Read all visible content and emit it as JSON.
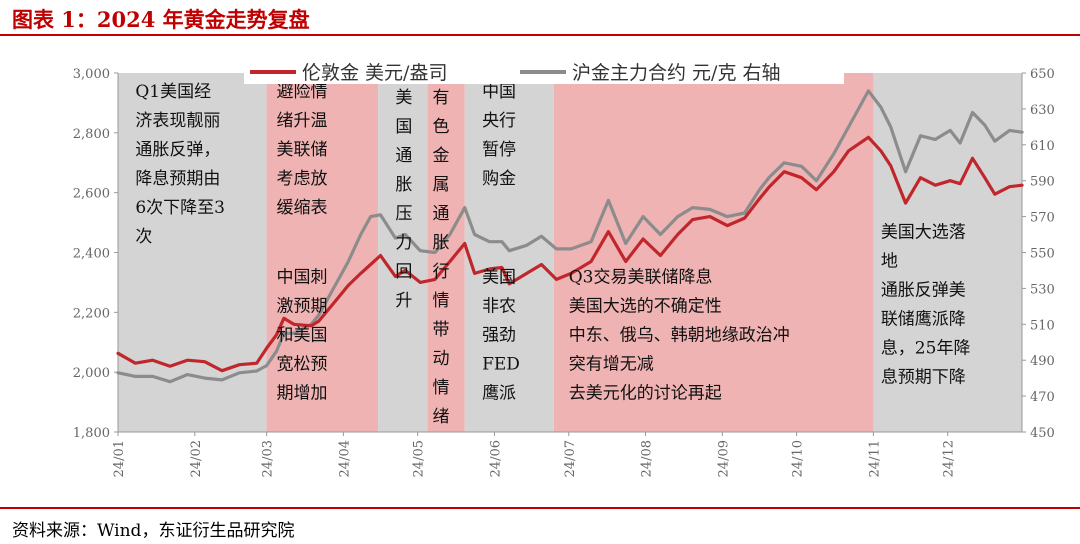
{
  "title": "图表 1：2024 年黄金走势复盘",
  "source": "资料来源：Wind，东证衍生品研究院",
  "chart_data": {
    "type": "line",
    "x_ticks": [
      "24/01",
      "24/02",
      "24/03",
      "24/04",
      "24/05",
      "24/06",
      "24/07",
      "24/08",
      "24/09",
      "24/10",
      "24/11",
      "24/12"
    ],
    "xlim": [
      "2024-01-01",
      "2024-12-31"
    ],
    "y_left": {
      "min": 1800,
      "max": 3000,
      "step": 200,
      "ticks": [
        "1,800",
        "2,000",
        "2,200",
        "2,400",
        "2,600",
        "2,800",
        "3,000"
      ]
    },
    "y_right": {
      "min": 450,
      "max": 650,
      "step": 20,
      "ticks": [
        "450",
        "470",
        "490",
        "510",
        "530",
        "550",
        "570",
        "590",
        "610",
        "630",
        "650"
      ]
    },
    "series": [
      {
        "name": "伦敦金 美元/盎司",
        "axis": "left",
        "color": "#c0272d",
        "points": [
          [
            "2024-01-01",
            2063
          ],
          [
            "2024-01-08",
            2030
          ],
          [
            "2024-01-15",
            2040
          ],
          [
            "2024-01-22",
            2020
          ],
          [
            "2024-01-29",
            2040
          ],
          [
            "2024-02-05",
            2035
          ],
          [
            "2024-02-12",
            2005
          ],
          [
            "2024-02-19",
            2025
          ],
          [
            "2024-02-26",
            2030
          ],
          [
            "2024-03-01",
            2080
          ],
          [
            "2024-03-05",
            2125
          ],
          [
            "2024-03-08",
            2180
          ],
          [
            "2024-03-12",
            2160
          ],
          [
            "2024-03-19",
            2155
          ],
          [
            "2024-03-22",
            2170
          ],
          [
            "2024-03-28",
            2230
          ],
          [
            "2024-04-03",
            2290
          ],
          [
            "2024-04-08",
            2330
          ],
          [
            "2024-04-12",
            2360
          ],
          [
            "2024-04-16",
            2390
          ],
          [
            "2024-04-22",
            2320
          ],
          [
            "2024-04-26",
            2340
          ],
          [
            "2024-05-02",
            2300
          ],
          [
            "2024-05-08",
            2310
          ],
          [
            "2024-05-14",
            2370
          ],
          [
            "2024-05-20",
            2430
          ],
          [
            "2024-05-24",
            2330
          ],
          [
            "2024-05-30",
            2345
          ],
          [
            "2024-06-04",
            2350
          ],
          [
            "2024-06-07",
            2295
          ],
          [
            "2024-06-14",
            2330
          ],
          [
            "2024-06-20",
            2360
          ],
          [
            "2024-06-26",
            2310
          ],
          [
            "2024-07-02",
            2330
          ],
          [
            "2024-07-10",
            2370
          ],
          [
            "2024-07-17",
            2470
          ],
          [
            "2024-07-24",
            2370
          ],
          [
            "2024-07-31",
            2445
          ],
          [
            "2024-08-07",
            2390
          ],
          [
            "2024-08-14",
            2460
          ],
          [
            "2024-08-20",
            2510
          ],
          [
            "2024-08-27",
            2520
          ],
          [
            "2024-09-03",
            2490
          ],
          [
            "2024-09-10",
            2515
          ],
          [
            "2024-09-16",
            2580
          ],
          [
            "2024-09-20",
            2620
          ],
          [
            "2024-09-26",
            2670
          ],
          [
            "2024-10-03",
            2650
          ],
          [
            "2024-10-09",
            2610
          ],
          [
            "2024-10-16",
            2670
          ],
          [
            "2024-10-22",
            2740
          ],
          [
            "2024-10-30",
            2785
          ],
          [
            "2024-11-04",
            2740
          ],
          [
            "2024-11-08",
            2690
          ],
          [
            "2024-11-14",
            2565
          ],
          [
            "2024-11-20",
            2650
          ],
          [
            "2024-11-26",
            2625
          ],
          [
            "2024-12-02",
            2640
          ],
          [
            "2024-12-06",
            2630
          ],
          [
            "2024-12-11",
            2715
          ],
          [
            "2024-12-16",
            2650
          ],
          [
            "2024-12-20",
            2595
          ],
          [
            "2024-12-26",
            2620
          ],
          [
            "2024-12-31",
            2625
          ]
        ]
      },
      {
        "name": "沪金主力合约 元/克 右轴",
        "axis": "right",
        "color": "#8c8c8c",
        "points": [
          [
            "2024-01-01",
            483
          ],
          [
            "2024-01-08",
            481
          ],
          [
            "2024-01-15",
            481
          ],
          [
            "2024-01-22",
            478
          ],
          [
            "2024-01-29",
            482
          ],
          [
            "2024-02-05",
            480
          ],
          [
            "2024-02-12",
            479
          ],
          [
            "2024-02-19",
            483
          ],
          [
            "2024-02-26",
            484
          ],
          [
            "2024-03-01",
            487
          ],
          [
            "2024-03-05",
            495
          ],
          [
            "2024-03-08",
            505
          ],
          [
            "2024-03-12",
            505
          ],
          [
            "2024-03-19",
            510
          ],
          [
            "2024-03-22",
            515
          ],
          [
            "2024-03-28",
            530
          ],
          [
            "2024-04-03",
            545
          ],
          [
            "2024-04-08",
            560
          ],
          [
            "2024-04-12",
            570
          ],
          [
            "2024-04-16",
            571
          ],
          [
            "2024-04-22",
            558
          ],
          [
            "2024-04-26",
            560
          ],
          [
            "2024-05-02",
            551
          ],
          [
            "2024-05-08",
            550
          ],
          [
            "2024-05-14",
            560
          ],
          [
            "2024-05-20",
            575
          ],
          [
            "2024-05-24",
            560
          ],
          [
            "2024-05-30",
            556
          ],
          [
            "2024-06-04",
            556
          ],
          [
            "2024-06-07",
            551
          ],
          [
            "2024-06-14",
            554
          ],
          [
            "2024-06-20",
            559
          ],
          [
            "2024-06-26",
            552
          ],
          [
            "2024-07-02",
            552
          ],
          [
            "2024-07-10",
            556
          ],
          [
            "2024-07-17",
            579
          ],
          [
            "2024-07-24",
            555
          ],
          [
            "2024-07-31",
            570
          ],
          [
            "2024-08-07",
            560
          ],
          [
            "2024-08-14",
            570
          ],
          [
            "2024-08-20",
            575
          ],
          [
            "2024-08-27",
            574
          ],
          [
            "2024-09-03",
            570
          ],
          [
            "2024-09-10",
            572
          ],
          [
            "2024-09-16",
            585
          ],
          [
            "2024-09-20",
            592
          ],
          [
            "2024-09-26",
            600
          ],
          [
            "2024-10-03",
            598
          ],
          [
            "2024-10-09",
            590
          ],
          [
            "2024-10-16",
            605
          ],
          [
            "2024-10-22",
            620
          ],
          [
            "2024-10-30",
            640
          ],
          [
            "2024-11-04",
            631
          ],
          [
            "2024-11-08",
            620
          ],
          [
            "2024-11-14",
            595
          ],
          [
            "2024-11-20",
            615
          ],
          [
            "2024-11-26",
            613
          ],
          [
            "2024-12-02",
            618
          ],
          [
            "2024-12-06",
            611
          ],
          [
            "2024-12-11",
            628
          ],
          [
            "2024-12-16",
            621
          ],
          [
            "2024-12-20",
            612
          ],
          [
            "2024-12-26",
            618
          ],
          [
            "2024-12-31",
            617
          ]
        ]
      }
    ],
    "regions": [
      {
        "start": "2024-01-01",
        "end": "2024-03-01",
        "color": "#d4d4d4",
        "lines": [
          "Q1美国经",
          "济表现靓丽",
          "通胀反弹，",
          "降息预期由",
          "6次下降至3",
          "次"
        ],
        "x": "2024-01-08",
        "y": 2920
      },
      {
        "start": "2024-03-01",
        "end": "2024-04-15",
        "color": "#f0b3b3",
        "lines": [
          "避险情",
          "绪升温",
          "美联储",
          "考虑放",
          "缓缩表"
        ],
        "x": "2024-03-05",
        "y": 2920
      },
      {
        "start": "2024-04-15",
        "end": "2024-05-05",
        "color": "#d4d4d4",
        "lines": [
          "美",
          "国",
          "通",
          "胀",
          "压",
          "力",
          "回",
          "升"
        ],
        "x": "2024-04-22",
        "y": 2900
      },
      {
        "start": "2024-05-05",
        "end": "2024-05-20",
        "color": "#f0b3b3",
        "lines": [
          "有",
          "色",
          "金",
          "属",
          "通",
          "胀",
          "行",
          "情",
          "带",
          "动",
          "情",
          "绪"
        ],
        "x": "2024-05-07",
        "y": 2900
      },
      {
        "start": "2024-05-20",
        "end": "2024-06-25",
        "color": "#d4d4d4",
        "lines": [
          "中国",
          "央行",
          "暂停",
          "购金"
        ],
        "x": "2024-05-27",
        "y": 2920
      },
      {
        "start": "2024-06-25",
        "end": "2024-11-01",
        "color": "#f0b3b3",
        "lines": [],
        "x": "2024-07-01",
        "y": 2920
      },
      {
        "start": "2024-11-01",
        "end": "2024-12-31",
        "color": "#d4d4d4",
        "lines": [
          "美国大选落",
          "地",
          "通胀反弹美",
          "联储鹰派降",
          "息，25年降",
          "息预期下降"
        ],
        "x": "2024-11-04",
        "y": 2450
      }
    ],
    "annotations": [
      {
        "lines": [
          "中国刺",
          "激预期",
          "和美国",
          "宽松预",
          "期增加"
        ],
        "x": "2024-03-05",
        "y": 2300
      },
      {
        "lines": [
          "美国",
          "非农",
          "强劲",
          "FED",
          "鹰派"
        ],
        "x": "2024-05-27",
        "y": 2300
      },
      {
        "lines": [
          "Q3交易美联储降息",
          "美国大选的不确定性",
          "中东、俄乌、韩朝地缘政治冲",
          "突有增无减",
          "去美元化的讨论再起"
        ],
        "x": "2024-07-01",
        "y": 2300
      }
    ],
    "legend": {
      "placement": "top-center"
    }
  }
}
